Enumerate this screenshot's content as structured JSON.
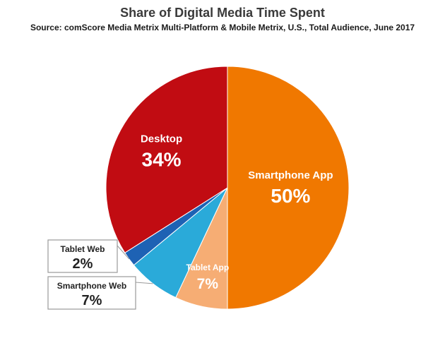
{
  "chart_data": {
    "type": "pie",
    "title": "Share of Digital Media Time Spent",
    "subtitle": "Source: comScore Media Metrix Multi-Platform & Mobile Metrix, U.S., Total Audience, June 2017",
    "unit": "%",
    "slices": [
      {
        "label": "Smartphone App",
        "value": 50,
        "display": "50%",
        "color": "#f07800"
      },
      {
        "label": "Tablet App",
        "value": 7,
        "display": "7%",
        "color": "#f6ad74"
      },
      {
        "label": "Smartphone Web",
        "value": 7,
        "display": "7%",
        "color": "#2aaad9"
      },
      {
        "label": "Tablet Web",
        "value": 2,
        "display": "2%",
        "color": "#1e62b4"
      },
      {
        "label": "Desktop",
        "value": 34,
        "display": "34%",
        "color": "#c10c12"
      }
    ]
  }
}
